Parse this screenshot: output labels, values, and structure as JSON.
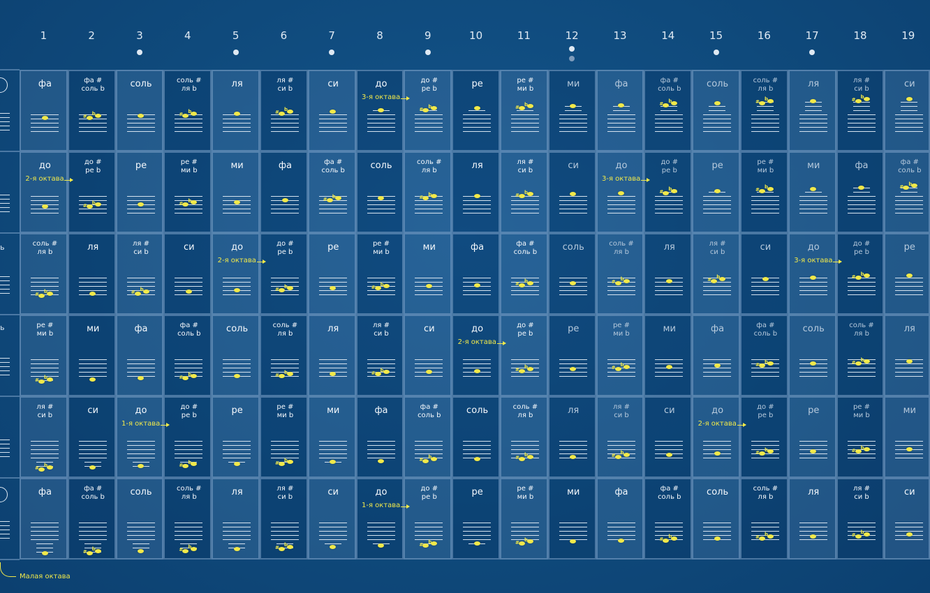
{
  "frets": [
    "1",
    "2",
    "3",
    "4",
    "5",
    "6",
    "7",
    "8",
    "9",
    "10",
    "11",
    "12",
    "13",
    "14",
    "15",
    "16",
    "17",
    "18",
    "19"
  ],
  "marker_frets": [
    3,
    5,
    7,
    9,
    12,
    15,
    17
  ],
  "double_marker_fret": 12,
  "left_edge": {
    "string_circle_1": "",
    "string_circle_6": "",
    "row3_text": "ь",
    "row4_text": "ь"
  },
  "small_octave_label": "Малая октава",
  "colors": {
    "note": "#f1e94a",
    "background": "#0f4a7c",
    "text": "#f4f8fc"
  },
  "strings": [
    {
      "notes": [
        [
          "фа"
        ],
        [
          "фа #",
          "соль b"
        ],
        [
          "соль"
        ],
        [
          "соль #",
          "ля b"
        ],
        [
          "ля"
        ],
        [
          "ля #",
          "си b"
        ],
        [
          "си"
        ],
        [
          "до"
        ],
        [
          "до #",
          "ре b"
        ],
        [
          "ре"
        ],
        [
          "ре #",
          "ми b"
        ],
        [
          "ми"
        ],
        [
          "фа"
        ],
        [
          "фа #",
          "соль b"
        ],
        [
          "соль"
        ],
        [
          "соль #",
          "ля b"
        ],
        [
          "ля"
        ],
        [
          "ля #",
          "си b"
        ],
        [
          "си"
        ]
      ],
      "octaves": [
        {
          "fret": 8,
          "text": "3-я октава"
        }
      ],
      "pos": [
        6.5,
        7,
        7.5,
        8,
        8.5,
        9,
        9.5,
        10,
        10.5,
        11,
        11.5,
        12,
        12.5,
        13,
        13.5,
        14,
        14.5,
        15,
        15.5
      ]
    },
    {
      "notes": [
        [
          "до"
        ],
        [
          "до #",
          "ре b"
        ],
        [
          "ре"
        ],
        [
          "ре #",
          "ми b"
        ],
        [
          "ми"
        ],
        [
          "фа"
        ],
        [
          "фа #",
          "соль b"
        ],
        [
          "соль"
        ],
        [
          "соль #",
          "ля b"
        ],
        [
          "ля"
        ],
        [
          "ля #",
          "си b"
        ],
        [
          "си"
        ],
        [
          "до"
        ],
        [
          "до #",
          "ре b"
        ],
        [
          "ре"
        ],
        [
          "ре #",
          "ми b"
        ],
        [
          "ми"
        ],
        [
          "фа"
        ],
        [
          "фа #",
          "соль b"
        ]
      ],
      "octaves": [
        {
          "fret": 1,
          "text": "2-я октава"
        },
        {
          "fret": 13,
          "text": "3-я октава"
        }
      ],
      "pos": [
        3,
        3.5,
        4,
        4.5,
        5,
        6,
        6.5,
        7,
        7.5,
        8,
        8.5,
        9,
        9.5,
        10,
        10.5,
        11,
        11.5,
        12,
        12.5
      ]
    },
    {
      "notes": [
        [
          "соль #",
          "ля b"
        ],
        [
          "ля"
        ],
        [
          "ля #",
          "си b"
        ],
        [
          "си"
        ],
        [
          "до"
        ],
        [
          "до #",
          "ре b"
        ],
        [
          "ре"
        ],
        [
          "ре #",
          "ми b"
        ],
        [
          "ми"
        ],
        [
          "фа"
        ],
        [
          "фа #",
          "соль b"
        ],
        [
          "соль"
        ],
        [
          "соль #",
          "ля b"
        ],
        [
          "ля"
        ],
        [
          "ля #",
          "си b"
        ],
        [
          "си"
        ],
        [
          "до"
        ],
        [
          "до #",
          "ре b"
        ],
        [
          "ре"
        ]
      ],
      "octaves": [
        {
          "fret": 5,
          "text": "2-я октава"
        },
        {
          "fret": 17,
          "text": "3-я октава"
        }
      ],
      "pos": [
        0,
        0.5,
        1,
        1.5,
        2,
        2.5,
        3,
        3.5,
        4,
        4.5,
        5,
        5.5,
        6,
        6.5,
        7,
        7.5,
        8,
        8.5,
        9
      ]
    },
    {
      "notes": [
        [
          "ре #",
          "ми b"
        ],
        [
          "ми"
        ],
        [
          "фа"
        ],
        [
          "фа #",
          "соль b"
        ],
        [
          "соль"
        ],
        [
          "соль #",
          "ля b"
        ],
        [
          "ля"
        ],
        [
          "ля #",
          "си b"
        ],
        [
          "си"
        ],
        [
          "до"
        ],
        [
          "до #",
          "ре b"
        ],
        [
          "ре"
        ],
        [
          "ре #",
          "ми b"
        ],
        [
          "ми"
        ],
        [
          "фа"
        ],
        [
          "фа #",
          "соль b"
        ],
        [
          "соль"
        ],
        [
          "соль #",
          "ля b"
        ],
        [
          "ля"
        ]
      ],
      "octaves": [
        {
          "fret": 10,
          "text": "2-я октава"
        }
      ],
      "pos": [
        -2,
        -1.5,
        -1,
        -0.5,
        0,
        0.5,
        1,
        1.5,
        2,
        2.5,
        3,
        3.5,
        4,
        4.5,
        5,
        5.5,
        6,
        6.5,
        7
      ]
    },
    {
      "notes": [
        [
          "ля #",
          "си b"
        ],
        [
          "си"
        ],
        [
          "до"
        ],
        [
          "до #",
          "ре b"
        ],
        [
          "ре"
        ],
        [
          "ре #",
          "ми b"
        ],
        [
          "ми"
        ],
        [
          "фа"
        ],
        [
          "фа #",
          "соль b"
        ],
        [
          "соль"
        ],
        [
          "соль #",
          "ля b"
        ],
        [
          "ля"
        ],
        [
          "ля #",
          "си b"
        ],
        [
          "си"
        ],
        [
          "до"
        ],
        [
          "до #",
          "ре b"
        ],
        [
          "ре"
        ],
        [
          "ре #",
          "ми b"
        ],
        [
          "ми"
        ]
      ],
      "octaves": [
        {
          "fret": 3,
          "text": "1-я октава"
        },
        {
          "fret": 15,
          "text": "2-я октава"
        }
      ],
      "pos": [
        -5,
        -4.5,
        -4,
        -3.5,
        -3,
        -2.5,
        -2,
        -1.5,
        -1,
        -0.5,
        0,
        0.5,
        1,
        1.5,
        2,
        2.5,
        3,
        3.5,
        4
      ]
    },
    {
      "notes": [
        [
          "фа"
        ],
        [
          "фа #",
          "соль b"
        ],
        [
          "соль"
        ],
        [
          "соль #",
          "ля b"
        ],
        [
          "ля"
        ],
        [
          "ля #",
          "си b"
        ],
        [
          "си"
        ],
        [
          "до"
        ],
        [
          "до #",
          "ре b"
        ],
        [
          "ре"
        ],
        [
          "ре #",
          "ми b"
        ],
        [
          "ми"
        ],
        [
          "фа"
        ],
        [
          "фа #",
          "соль b"
        ],
        [
          "соль"
        ],
        [
          "соль #",
          "ля b"
        ],
        [
          "ля"
        ],
        [
          "ля #",
          "си b"
        ],
        [
          "си"
        ]
      ],
      "octaves": [
        {
          "fret": 8,
          "text": "1-я октава"
        }
      ],
      "pos": [
        -6.5,
        -6,
        -5.5,
        -5,
        -4.5,
        -4,
        -3.5,
        -3,
        -2.5,
        -2,
        -1.5,
        -1,
        -0.5,
        0,
        0.5,
        1,
        1.5,
        2,
        2.5
      ]
    }
  ]
}
